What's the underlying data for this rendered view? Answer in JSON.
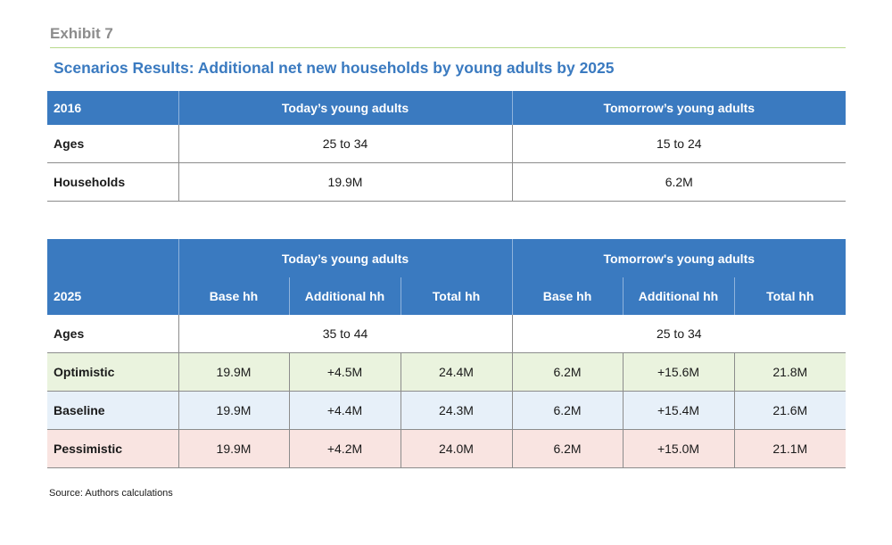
{
  "exhibit_label": "Exhibit 7",
  "title": "Scenarios Results: Additional net new households by young adults by 2025",
  "table_2016": {
    "corner": "2016",
    "col_today": "Today’s young adults",
    "col_tomorrow": "Tomorrow’s young adults",
    "rows": [
      {
        "label": "Ages",
        "today": "25 to 34",
        "tomorrow": "15 to 24"
      },
      {
        "label": "Households",
        "today": "19.9M",
        "tomorrow": "6.2M"
      }
    ]
  },
  "table_2025": {
    "corner": "2025",
    "group_today": "Today’s young adults",
    "group_tomorrow": "Tomorrow's young adults",
    "subheaders": [
      "Base hh",
      "Additional hh",
      "Total hh",
      "Base hh",
      "Additional hh",
      "Total hh"
    ],
    "ages": {
      "label": "Ages",
      "today": "35 to 44",
      "tomorrow": "25 to 34"
    },
    "scenarios": [
      {
        "label": "Optimistic",
        "values": [
          "19.9M",
          "+4.5M",
          "24.4M",
          "6.2M",
          "+15.6M",
          "21.8M"
        ],
        "color": "#eaf3de"
      },
      {
        "label": "Baseline",
        "values": [
          "19.9M",
          "+4.4M",
          "24.3M",
          "6.2M",
          "+15.4M",
          "21.6M"
        ],
        "color": "#e7f0f9"
      },
      {
        "label": "Pessimistic",
        "values": [
          "19.9M",
          "+4.2M",
          "24.0M",
          "6.2M",
          "+15.0M",
          "21.1M"
        ],
        "color": "#f9e4e1"
      }
    ]
  },
  "source": "Source: Authors calculations",
  "colors": {
    "header_blue": "#3a7ac0",
    "rule_green": "#b7d98c",
    "exhibit_gray": "#8c8c8c"
  }
}
